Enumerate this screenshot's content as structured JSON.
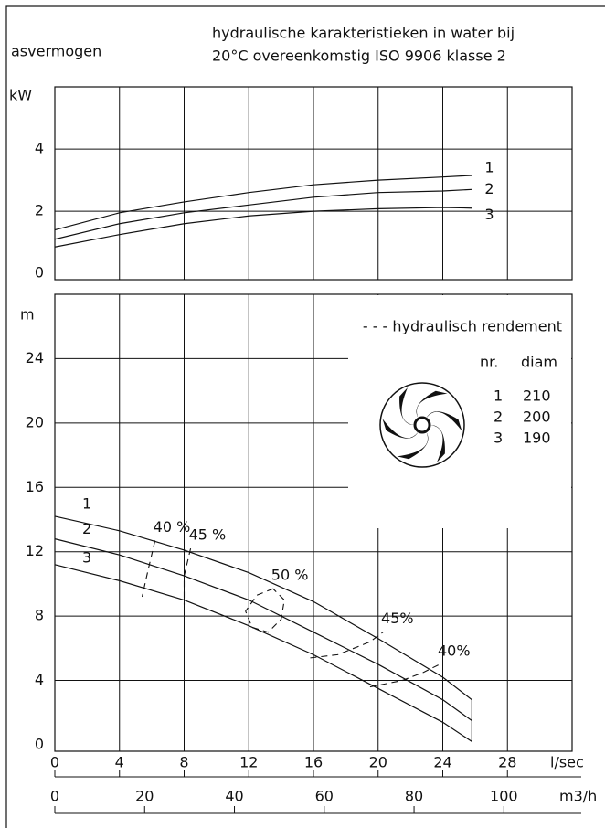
{
  "header": {
    "left": "asvermogen",
    "right": [
      "hydraulische karakteristieken in water bij",
      "20°C overeenkomstig ISO 9906 klasse 2"
    ]
  },
  "chart_data": [
    {
      "type": "line",
      "y_unit": "kW",
      "xlim": [
        0,
        32
      ],
      "ylim": [
        -0.2,
        6
      ],
      "yticks": [
        0,
        2,
        4
      ],
      "grid": true,
      "x": [
        0,
        4,
        8,
        12,
        16,
        20,
        24,
        25.8
      ],
      "series": [
        {
          "name": "1",
          "color": "#111111",
          "values": [
            1.4,
            1.95,
            2.3,
            2.6,
            2.85,
            3.0,
            3.1,
            3.15
          ]
        },
        {
          "name": "2",
          "color": "#111111",
          "values": [
            1.1,
            1.6,
            1.95,
            2.2,
            2.45,
            2.6,
            2.65,
            2.7
          ]
        },
        {
          "name": "3",
          "color": "#111111",
          "values": [
            0.85,
            1.25,
            1.6,
            1.85,
            2.0,
            2.08,
            2.12,
            2.1
          ]
        }
      ]
    },
    {
      "type": "line",
      "y_unit": "m",
      "xlim": [
        0,
        32
      ],
      "ylim": [
        -0.4,
        28
      ],
      "yticks": [
        0,
        4,
        8,
        12,
        16,
        20,
        24
      ],
      "grid": true,
      "xticks": [
        0,
        4,
        8,
        12,
        16,
        20,
        24,
        28
      ],
      "x_unit": "l/sec",
      "x2lim": [
        0,
        115.2
      ],
      "x2ticks": [
        0,
        20,
        40,
        60,
        80,
        100
      ],
      "x2_unit": "m3/h",
      "x": [
        0,
        4,
        8,
        12,
        16,
        20,
        24,
        25.8
      ],
      "series": [
        {
          "name": "1",
          "color": "#111111",
          "values": [
            14.2,
            13.3,
            12.1,
            10.7,
            8.9,
            6.6,
            4.2,
            2.8
          ]
        },
        {
          "name": "2",
          "color": "#111111",
          "values": [
            12.8,
            11.8,
            10.5,
            9.0,
            7.0,
            5.0,
            2.8,
            1.5
          ]
        },
        {
          "name": "3",
          "color": "#111111",
          "values": [
            11.2,
            10.2,
            9.0,
            7.4,
            5.6,
            3.5,
            1.4,
            0.2
          ]
        }
      ],
      "efficiency": [
        {
          "name": "40 %",
          "x": [
            6.2,
            5.8,
            5.4
          ],
          "values": [
            12.7,
            11.0,
            9.2
          ]
        },
        {
          "name": "45 %",
          "x": [
            8.4,
            8.0,
            8.0
          ],
          "values": [
            12.2,
            10.5,
            8.7
          ]
        },
        {
          "name": "50 %",
          "x": [
            13.5,
            12.5,
            11.8,
            12.2,
            13.2,
            14.0,
            14.2,
            13.5
          ],
          "values": [
            9.7,
            9.3,
            8.3,
            7.3,
            7.0,
            7.8,
            9.0,
            9.7
          ]
        },
        {
          "name": "45%",
          "x": [
            15.8,
            17.5,
            19.5,
            20.3
          ],
          "values": [
            5.4,
            5.6,
            6.4,
            7.0
          ]
        },
        {
          "name": "40%",
          "x": [
            19.5,
            21.5,
            22.8,
            23.8
          ],
          "values": [
            3.6,
            4.0,
            4.5,
            5.0
          ]
        }
      ],
      "legend": {
        "title": "- - - hydraulisch rendement",
        "headers": [
          "nr.",
          "diam"
        ],
        "rows": [
          [
            "1",
            210
          ],
          [
            "2",
            200
          ],
          [
            "3",
            190
          ]
        ]
      }
    }
  ]
}
